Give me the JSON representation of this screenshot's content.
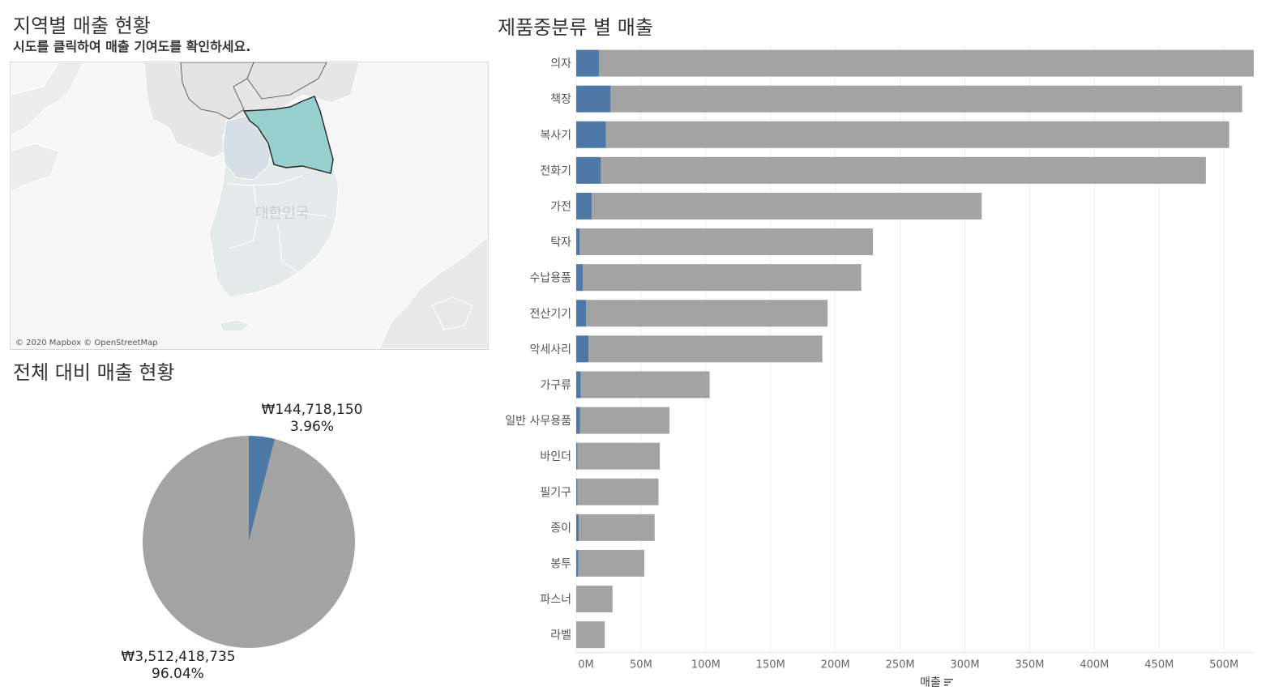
{
  "map_section": {
    "title": "지역별 매출 현황",
    "subtitle": "시도를 클릭하여 매출 기여도를 확인하세요.",
    "credit": "© 2020 Mapbox © OpenStreetMap",
    "country_label": "대한민국",
    "highlight_color": "#96cfce"
  },
  "pie_section": {
    "title": "전체 대비 매출 현황"
  },
  "bar_section": {
    "title": "제품중분류 별 매출",
    "axis_title": "매출",
    "sort_icon": "sort-descending-icon"
  },
  "colors": {
    "selected": "#4e79a7",
    "total": "#a3a3a3"
  },
  "chart_data": [
    {
      "type": "pie",
      "slices": [
        {
          "label": "₩144,718,150",
          "percent_label": "3.96%",
          "value": 144718150,
          "percent": 3.96,
          "color": "#4e79a7"
        },
        {
          "label": "₩3,512,418,735",
          "percent_label": "96.04%",
          "value": 3512418735,
          "percent": 96.04,
          "color": "#a3a3a3"
        }
      ]
    },
    {
      "type": "bar",
      "orientation": "horizontal",
      "stacked": true,
      "categories": [
        "의자",
        "책장",
        "복사기",
        "전화기",
        "가전",
        "탁자",
        "수납용품",
        "전산기기",
        "악세사리",
        "가구류",
        "일반 사무용품",
        "바인더",
        "필기구",
        "종이",
        "봉투",
        "파스너",
        "라벨"
      ],
      "series": [
        {
          "color": "#4e79a7",
          "values": [
            17.5,
            26.5,
            23,
            19,
            12,
            2.5,
            5,
            7.5,
            9.5,
            3.5,
            3,
            1,
            1,
            2,
            1.5,
            0,
            0
          ]
        },
        {
          "color": "#a3a3a3",
          "values": [
            505.5,
            487.5,
            481,
            467,
            301,
            226.5,
            215,
            186.5,
            180.5,
            99.5,
            69,
            63.5,
            62.5,
            58.5,
            51,
            28,
            22
          ]
        }
      ],
      "xticks": [
        "0M",
        "50M",
        "100M",
        "150M",
        "200M",
        "250M",
        "300M",
        "350M",
        "400M",
        "450M",
        "500M"
      ],
      "xlim": [
        0,
        523
      ],
      "unit": "M",
      "grid": true
    }
  ]
}
